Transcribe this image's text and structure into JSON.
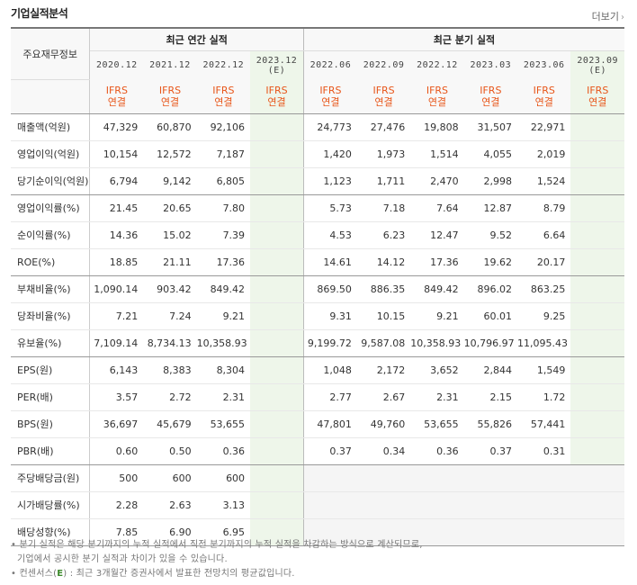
{
  "header": {
    "title": "기업실적분석",
    "more": "더보기"
  },
  "table": {
    "label_header": "주요재무정보",
    "group_annual": "최근 연간 실적",
    "group_quarter": "최근 분기 실적",
    "annual_periods": [
      "2020.12",
      "2021.12",
      "2022.12",
      "2023.12"
    ],
    "quarter_periods": [
      "2022.06",
      "2022.09",
      "2022.12",
      "2023.03",
      "2023.06",
      "2023.09"
    ],
    "estimate_mark": "(E)",
    "basis_top": "IFRS",
    "basis_bottom": "연결",
    "rows": [
      {
        "label": "매출액(억원)",
        "a": [
          "47,329",
          "60,870",
          "92,106",
          ""
        ],
        "q": [
          "24,773",
          "27,476",
          "19,808",
          "31,507",
          "22,971",
          ""
        ]
      },
      {
        "label": "영업이익(억원)",
        "a": [
          "10,154",
          "12,572",
          "7,187",
          ""
        ],
        "q": [
          "1,420",
          "1,973",
          "1,514",
          "4,055",
          "2,019",
          ""
        ]
      },
      {
        "label": "당기순이익(억원)",
        "a": [
          "6,794",
          "9,142",
          "6,805",
          ""
        ],
        "q": [
          "1,123",
          "1,711",
          "2,470",
          "2,998",
          "1,524",
          ""
        ]
      },
      {
        "label": "영업이익률(%)",
        "a": [
          "21.45",
          "20.65",
          "7.80",
          ""
        ],
        "q": [
          "5.73",
          "7.18",
          "7.64",
          "12.87",
          "8.79",
          ""
        ]
      },
      {
        "label": "순이익률(%)",
        "a": [
          "14.36",
          "15.02",
          "7.39",
          ""
        ],
        "q": [
          "4.53",
          "6.23",
          "12.47",
          "9.52",
          "6.64",
          ""
        ]
      },
      {
        "label": "ROE(%)",
        "a": [
          "18.85",
          "21.11",
          "17.36",
          ""
        ],
        "q": [
          "14.61",
          "14.12",
          "17.36",
          "19.62",
          "20.17",
          ""
        ]
      },
      {
        "label": "부채비율(%)",
        "a": [
          "1,090.14",
          "903.42",
          "849.42",
          ""
        ],
        "q": [
          "869.50",
          "886.35",
          "849.42",
          "896.02",
          "863.25",
          ""
        ]
      },
      {
        "label": "당좌비율(%)",
        "a": [
          "7.21",
          "7.24",
          "9.21",
          ""
        ],
        "q": [
          "9.31",
          "10.15",
          "9.21",
          "60.01",
          "9.25",
          ""
        ]
      },
      {
        "label": "유보율(%)",
        "a": [
          "7,109.14",
          "8,734.13",
          "10,358.93",
          ""
        ],
        "q": [
          "9,199.72",
          "9,587.08",
          "10,358.93",
          "10,796.97",
          "11,095.43",
          ""
        ]
      },
      {
        "label": "EPS(원)",
        "a": [
          "6,143",
          "8,383",
          "8,304",
          ""
        ],
        "q": [
          "1,048",
          "2,172",
          "3,652",
          "2,844",
          "1,549",
          ""
        ]
      },
      {
        "label": "PER(배)",
        "a": [
          "3.57",
          "2.72",
          "2.31",
          ""
        ],
        "q": [
          "2.77",
          "2.67",
          "2.31",
          "2.15",
          "1.72",
          ""
        ]
      },
      {
        "label": "BPS(원)",
        "a": [
          "36,697",
          "45,679",
          "53,655",
          ""
        ],
        "q": [
          "47,801",
          "49,760",
          "53,655",
          "55,826",
          "57,441",
          ""
        ]
      },
      {
        "label": "PBR(배)",
        "a": [
          "0.60",
          "0.50",
          "0.36",
          ""
        ],
        "q": [
          "0.37",
          "0.34",
          "0.36",
          "0.37",
          "0.31",
          ""
        ]
      },
      {
        "label": "주당배당금(원)",
        "a": [
          "500",
          "600",
          "600",
          ""
        ],
        "q": null
      },
      {
        "label": "시가배당률(%)",
        "a": [
          "2.28",
          "2.63",
          "3.13",
          ""
        ],
        "q": null
      },
      {
        "label": "배당성향(%)",
        "a": [
          "7.85",
          "6.90",
          "6.95",
          ""
        ],
        "q": null
      }
    ],
    "group_ends": [
      2,
      5,
      8,
      12,
      15
    ]
  },
  "footnotes": {
    "line1": "분기 실적은 해당 분기까지의 누적 실적에서 직전 분기까지의 누적 실적을 차감하는 방식으로 계산되므로,",
    "line2": "기업에서 공시한 분기 실적과 차이가 있을 수 있습니다.",
    "line3_pre": "컨센서스(",
    "line3_em": "E",
    "line3_post": ") : 최근 3개월간 증권사에서 발표한 전망치의 평균값입니다."
  }
}
